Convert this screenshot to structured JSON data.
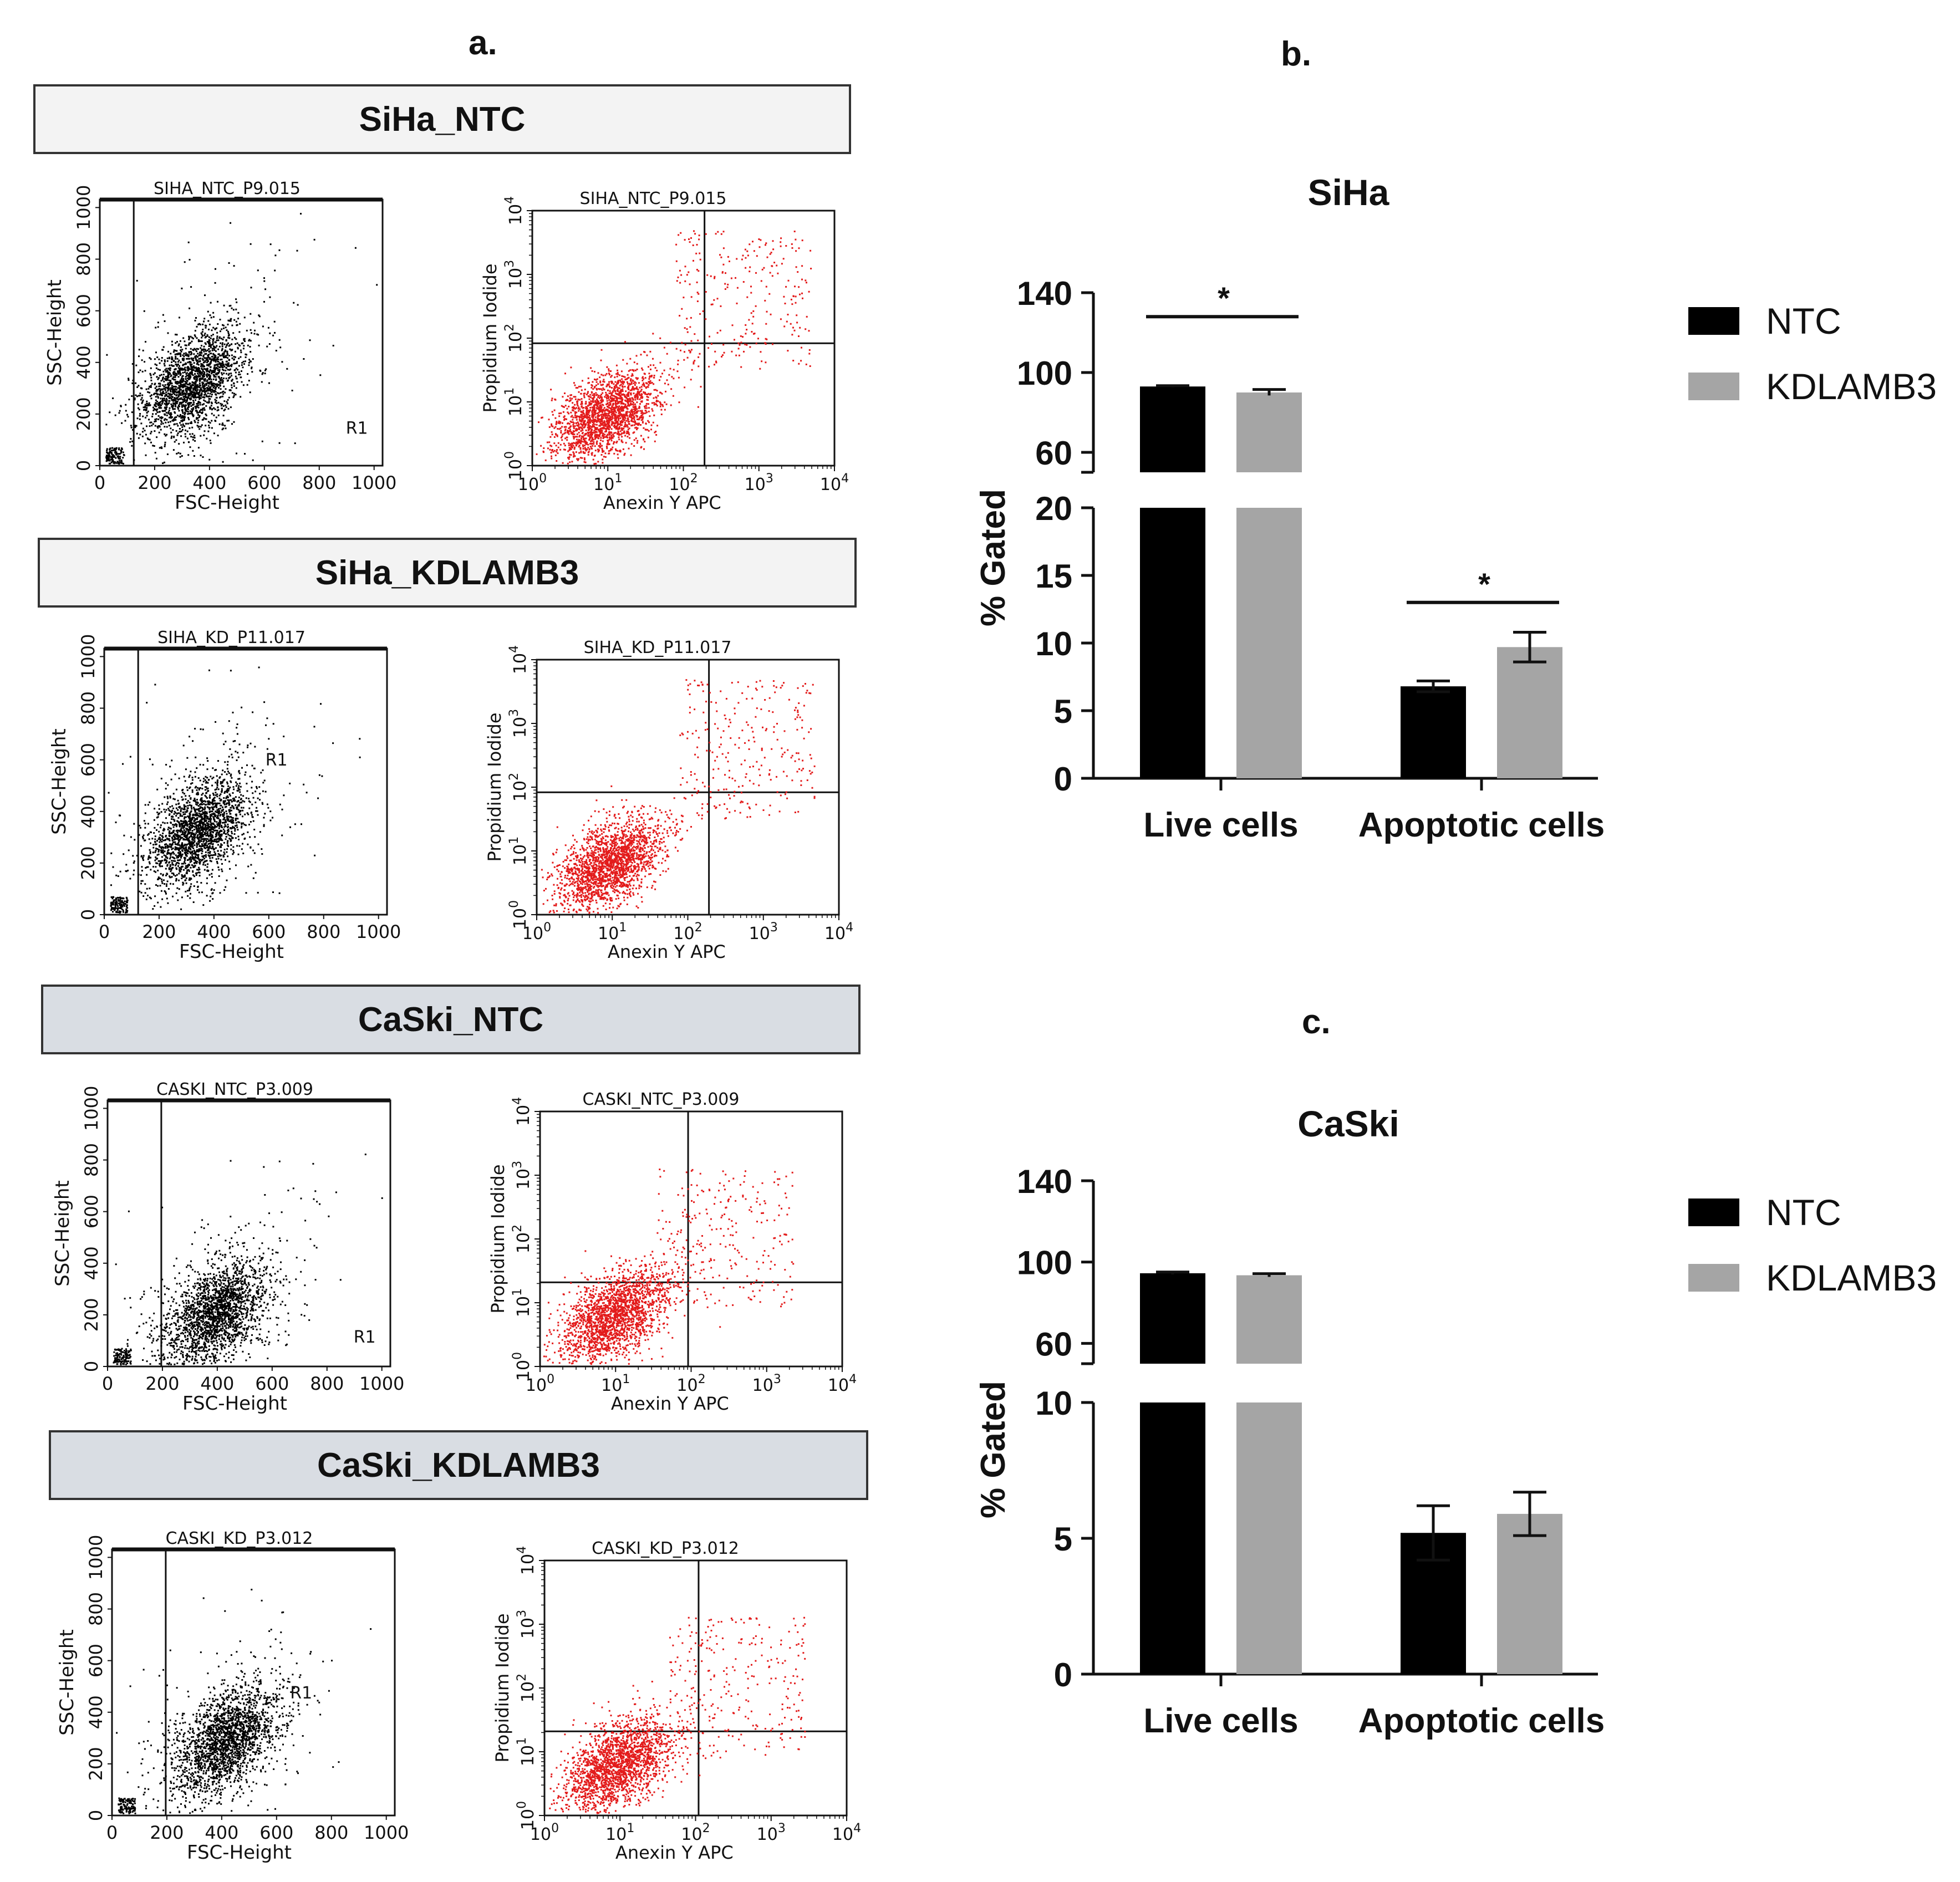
{
  "panel_a": {
    "label": "a.",
    "rows": [
      {
        "banner": "SiHa_NTC",
        "theme": "siha",
        "key": "siha_ntc",
        "scatter": {
          "title": "SIHA_NTC_P9.015",
          "gate": "R1",
          "show_gate_label": true,
          "xlabel": "FSC-Height",
          "ylabel": "SSC-Height",
          "xticks": [
            "0",
            "200",
            "400",
            "600",
            "800",
            "1000"
          ],
          "yticks": [
            "0",
            "200",
            "400",
            "600",
            "800",
            "1000"
          ]
        },
        "quad": {
          "title": "SIHA_NTC_P9.015",
          "xlabel": "Anexin Y APC",
          "ylabel": "Propidium Iodide",
          "tick_base": "10",
          "tick_exps": [
            "0",
            "1",
            "2",
            "3",
            "4"
          ]
        }
      },
      {
        "banner": "SiHa_KDLAMB3",
        "theme": "siha",
        "key": "siha_kd",
        "scatter": {
          "title": "SIHA_KD_P11.017",
          "gate": "R1",
          "show_gate_label": true,
          "xlabel": "FSC-Height",
          "ylabel": "SSC-Height",
          "xticks": [
            "0",
            "200",
            "400",
            "600",
            "800",
            "1000"
          ],
          "yticks": [
            "0",
            "200",
            "400",
            "600",
            "800",
            "1000"
          ]
        },
        "quad": {
          "title": "SIHA_KD_P11.017",
          "xlabel": "Anexin Y APC",
          "ylabel": "Propidium Iodide",
          "tick_base": "10",
          "tick_exps": [
            "0",
            "1",
            "2",
            "3",
            "4"
          ]
        }
      },
      {
        "banner": "CaSki_NTC",
        "theme": "caski",
        "key": "caski_ntc",
        "scatter": {
          "title": "CASKI_NTC_P3.009",
          "gate": "R1",
          "show_gate_label": true,
          "xlabel": "FSC-Height",
          "ylabel": "SSC-Height",
          "xticks": [
            "0",
            "200",
            "400",
            "600",
            "800",
            "1000"
          ],
          "yticks": [
            "0",
            "200",
            "400",
            "600",
            "800",
            "1000"
          ]
        },
        "quad": {
          "title": "CASKI_NTC_P3.009",
          "xlabel": "Anexin Y APC",
          "ylabel": "Propidium Iodide",
          "tick_base": "10",
          "tick_exps": [
            "0",
            "1",
            "2",
            "3",
            "4"
          ]
        }
      },
      {
        "banner": "CaSki_KDLAMB3",
        "theme": "caski",
        "key": "caski_kd",
        "scatter": {
          "title": "CASKI_KD_P3.012",
          "gate": "R1",
          "show_gate_label": true,
          "xlabel": "FSC-Height",
          "ylabel": "SSC-Height",
          "xticks": [
            "0",
            "200",
            "400",
            "600",
            "800",
            "1000"
          ],
          "yticks": [
            "0",
            "200",
            "400",
            "600",
            "800",
            "1000"
          ]
        },
        "quad": {
          "title": "CASKI_KD_P3.012",
          "xlabel": "Anexin Y APC",
          "ylabel": "Propidium Iodide",
          "tick_base": "10",
          "tick_exps": [
            "0",
            "1",
            "2",
            "3",
            "4"
          ]
        }
      }
    ]
  },
  "panel_b": {
    "label": "b."
  },
  "panel_c": {
    "label": "c."
  },
  "colors": {
    "ntc": "#000000",
    "kd": "#a5a5a5",
    "flow_dots": "#e31b1b",
    "scatter_dots": "#000000"
  },
  "chart_data": [
    {
      "id": "b",
      "type": "bar",
      "title": "SiHa",
      "categories": [
        "Live cells",
        "Apoptotic cells"
      ],
      "series": [
        {
          "name": "NTC",
          "values": [
            93,
            6.8
          ],
          "errors": [
            0.4,
            0.4
          ]
        },
        {
          "name": "KDLAMB3",
          "values": [
            90,
            9.7
          ],
          "errors": [
            1.5,
            1.1
          ]
        }
      ],
      "ylabel": "% Gated",
      "xlabel": "",
      "y_axis_break": {
        "lower_range": [
          0,
          20
        ],
        "upper_range": [
          50,
          140
        ]
      },
      "yticks_lower": [
        "0",
        "5",
        "10",
        "15",
        "20"
      ],
      "yticks_upper": [
        "60",
        "100",
        "140"
      ],
      "significance": [
        {
          "category": "Live cells",
          "label": "*"
        },
        {
          "category": "Apoptotic cells",
          "label": "*"
        }
      ],
      "legend": [
        "NTC",
        "KDLAMB3"
      ],
      "legend_position": "right"
    },
    {
      "id": "c",
      "type": "bar",
      "title": "CaSki",
      "categories": [
        "Live cells",
        "Apoptotic cells"
      ],
      "series": [
        {
          "name": "NTC",
          "values": [
            94.5,
            5.2
          ],
          "errors": [
            0.6,
            1.0
          ]
        },
        {
          "name": "KDLAMB3",
          "values": [
            93.5,
            5.9
          ],
          "errors": [
            0.8,
            0.8
          ]
        }
      ],
      "ylabel": "% Gated",
      "xlabel": "",
      "y_axis_break": {
        "lower_range": [
          0,
          10
        ],
        "upper_range": [
          50,
          140
        ]
      },
      "yticks_lower": [
        "0",
        "5",
        "10"
      ],
      "yticks_upper": [
        "60",
        "100",
        "140"
      ],
      "significance": [],
      "legend": [
        "NTC",
        "KDLAMB3"
      ],
      "legend_position": "right"
    }
  ]
}
